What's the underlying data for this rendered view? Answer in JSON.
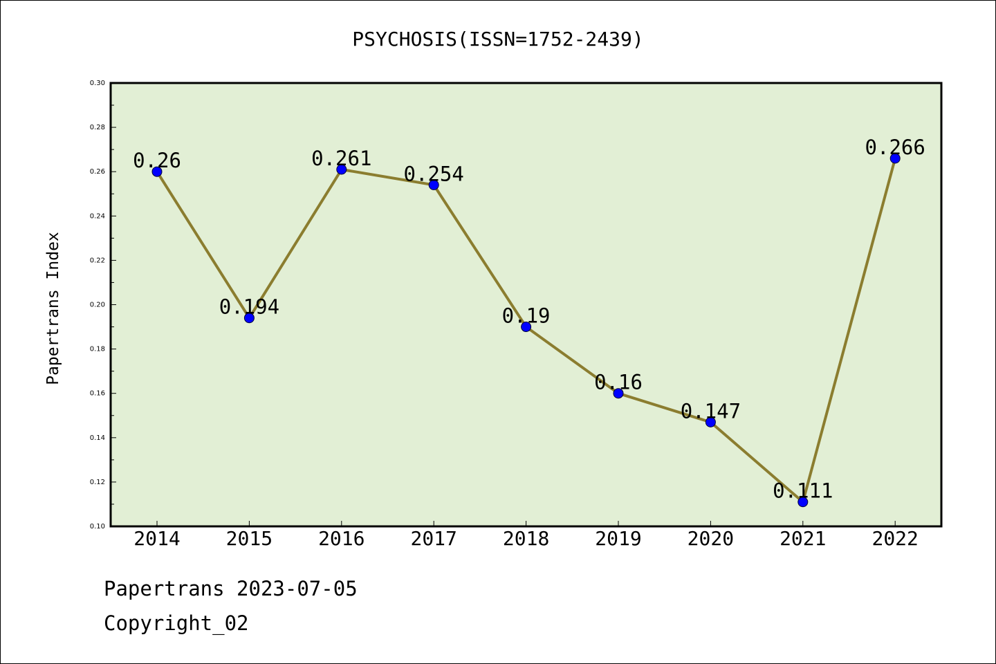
{
  "chart_data": {
    "type": "line",
    "title": "PSYCHOSIS(ISSN=1752-2439)",
    "xlabel": "",
    "ylabel": "Papertrans Index",
    "categories": [
      "2014",
      "2015",
      "2016",
      "2017",
      "2018",
      "2019",
      "2020",
      "2021",
      "2022"
    ],
    "series": [
      {
        "values": [
          0.26,
          0.194,
          0.261,
          0.254,
          0.19,
          0.16,
          0.147,
          0.111,
          0.266
        ],
        "labels": [
          "0.26",
          "0.194",
          "0.261",
          "0.254",
          "0.19",
          "0.16",
          "0.147",
          "0.111",
          "0.266"
        ]
      }
    ],
    "ylim": [
      0.1,
      0.3
    ],
    "yticks": [
      "0.10",
      "0.12",
      "0.14",
      "0.16",
      "0.18",
      "0.20",
      "0.22",
      "0.24",
      "0.26",
      "0.28",
      "0.30"
    ],
    "grid": false,
    "colors": {
      "plot_background": "#e2efd5",
      "line": "#8b7d2f",
      "marker": "#0000ff"
    }
  },
  "footer": {
    "source": "Papertrans 2023-07-05",
    "copyright": "Copyright_02"
  }
}
